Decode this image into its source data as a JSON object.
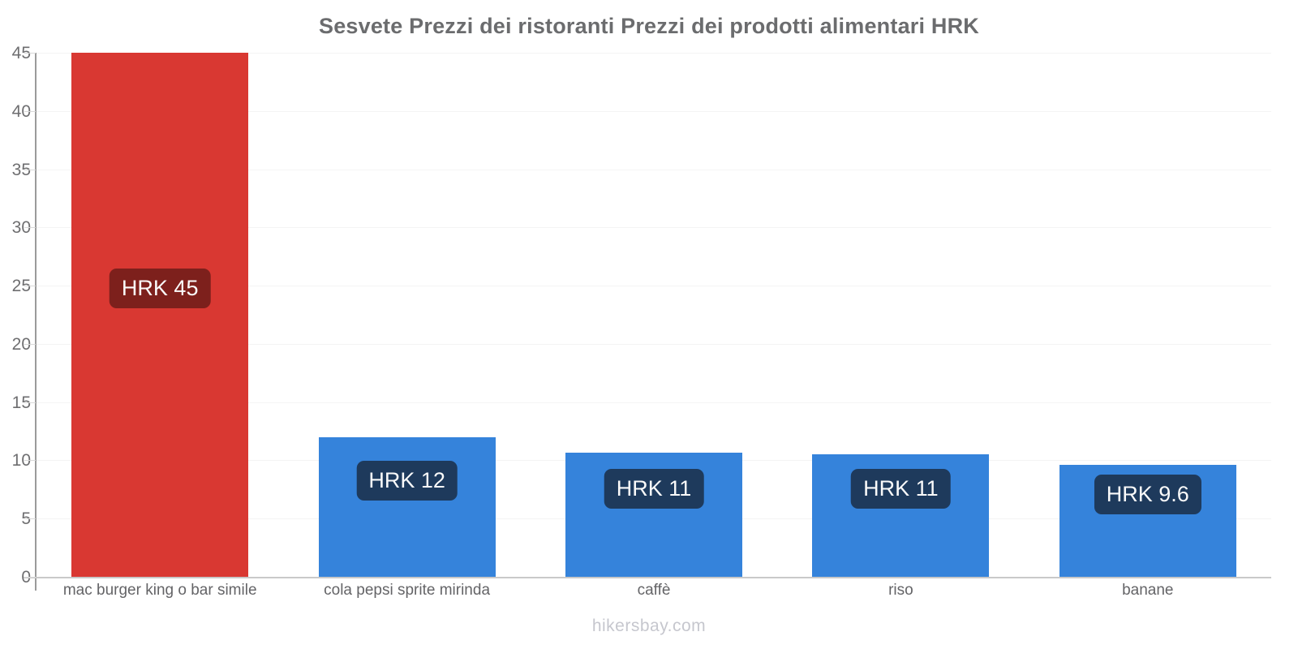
{
  "title": "Sesvete Prezzi dei ristoranti Prezzi dei prodotti alimentari HRK",
  "footer": "hikersbay.com",
  "chart_data": {
    "type": "bar",
    "title": "Sesvete Prezzi dei ristoranti Prezzi dei prodotti alimentari HRK",
    "currency": "HRK",
    "categories": [
      "mac burger king o bar simile",
      "cola pepsi sprite mirinda",
      "caffè",
      "riso",
      "banane"
    ],
    "values": [
      45,
      12,
      10.65,
      10.55,
      9.6
    ],
    "value_labels": [
      "HRK 45",
      "HRK 12",
      "HRK 11",
      "HRK 11",
      "HRK 9.6"
    ],
    "bar_colors": [
      "#d93832",
      "#3583db",
      "#3583db",
      "#3583db",
      "#3583db"
    ],
    "badge_colors": [
      "#7d201c",
      "#1e3a5c",
      "#1e3a5c",
      "#1e3a5c",
      "#1e3a5c"
    ],
    "xlabel": "",
    "ylabel": "",
    "ylim": [
      0,
      45
    ],
    "yticks": [
      0,
      5,
      10,
      15,
      20,
      25,
      30,
      35,
      40,
      45
    ],
    "grid": "horizontal-faint",
    "legend": "none",
    "watermark": "hikersbay.com"
  },
  "colors": {
    "title_text": "#6b6c6e",
    "tick_text": "#6e6e70",
    "category_text": "#646467",
    "footer_text": "#c6c7ce",
    "gridline": "#f4f4f4",
    "y_axis_line": "#9b9b9b",
    "x_axis_line": "#c9c9c9",
    "badge_text": "#fafafa"
  }
}
